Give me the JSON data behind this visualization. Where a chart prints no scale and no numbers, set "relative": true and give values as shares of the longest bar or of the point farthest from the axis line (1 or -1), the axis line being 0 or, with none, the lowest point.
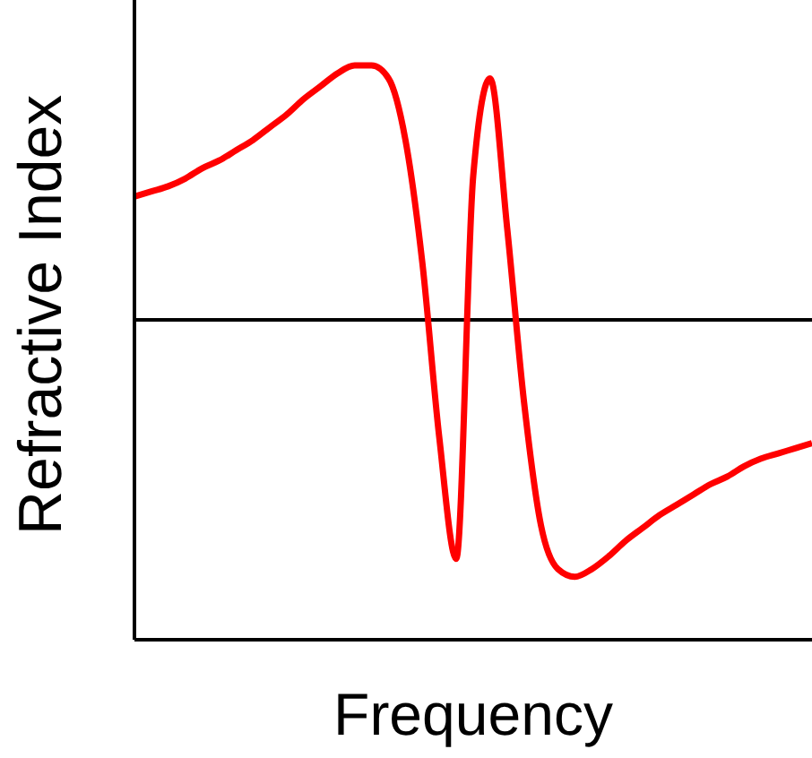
{
  "chart_data": {
    "type": "line",
    "relative": true,
    "xlabel": "Frequency",
    "ylabel": "Refractive Index",
    "categories": [
      null,
      null,
      null,
      null,
      null,
      null,
      null,
      null,
      null,
      null,
      null,
      null,
      null,
      null,
      null,
      null,
      null,
      null,
      null,
      null,
      null,
      null,
      null,
      null,
      null,
      null,
      null,
      null,
      null,
      null,
      null,
      null,
      null,
      null,
      null,
      null,
      null,
      null,
      null,
      null,
      null
    ],
    "series": [
      {
        "color": "#ff0000",
        "values": [
          0.48,
          0.5,
          0.52,
          0.55,
          0.59,
          0.62,
          0.66,
          0.7,
          0.75,
          0.8,
          0.86,
          0.91,
          0.96,
          0.99,
          0.99,
          0.94,
          0.7,
          0.22,
          -0.46,
          -0.93,
          0.56,
          0.94,
          0.36,
          -0.32,
          -0.8,
          -0.97,
          -1,
          -0.97,
          -0.92,
          -0.86,
          -0.81,
          -0.76,
          -0.72,
          -0.68,
          -0.64,
          -0.61,
          -0.57,
          -0.54,
          -0.52,
          -0.5,
          -0.48
        ]
      }
    ],
    "grid": false,
    "legend": false,
    "marker": "none",
    "line_style": "solid"
  }
}
